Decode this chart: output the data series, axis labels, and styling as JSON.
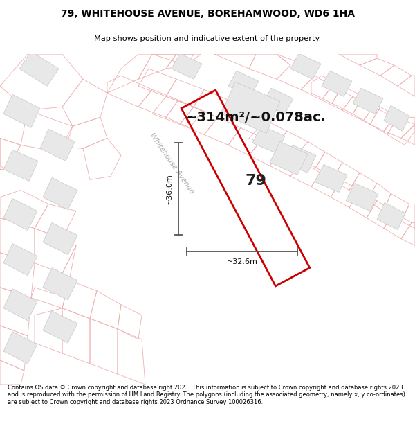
{
  "title_line1": "79, WHITEHOUSE AVENUE, BOREHAMWOOD, WD6 1HA",
  "title_line2": "Map shows position and indicative extent of the property.",
  "area_text": "~314m²/~0.078ac.",
  "number_label": "79",
  "dim_horizontal": "~32.6m",
  "dim_vertical": "~36.0m",
  "street_label": "Whitehouse Avenue",
  "footer_text": "Contains OS data © Crown copyright and database right 2021. This information is subject to Crown copyright and database rights 2023 and is reproduced with the permission of HM Land Registry. The polygons (including the associated geometry, namely x, y co-ordinates) are subject to Crown copyright and database rights 2023 Ordnance Survey 100026316.",
  "bg_color": "#ffffff",
  "map_bg_color": "#ffffff",
  "plot_color": "#cc0000",
  "road_outline_color": "#f0b0b0",
  "building_fill_color": "#e8e8e8",
  "building_edge_color": "#c8c8c8",
  "dim_line_color": "#555555",
  "title_color": "#000000",
  "footer_color": "#000000",
  "street_label_color": "#aaaaaa"
}
